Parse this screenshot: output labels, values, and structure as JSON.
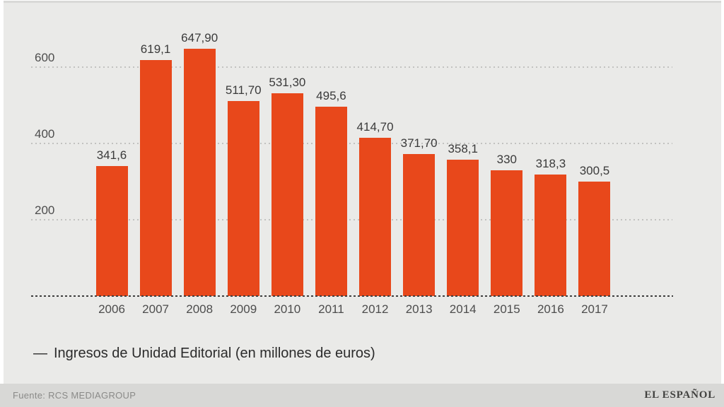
{
  "chart_data": {
    "type": "bar",
    "title": "",
    "legend": "Ingresos de Unidad Editorial (en millones de euros)",
    "legend_marker": "—",
    "legend_position": "bottom-left",
    "categories": [
      "2006",
      "2007",
      "2008",
      "2009",
      "2010",
      "2011",
      "2012",
      "2013",
      "2014",
      "2015",
      "2016",
      "2017"
    ],
    "values": [
      341.6,
      619.1,
      647.9,
      511.7,
      531.3,
      495.6,
      414.7,
      371.7,
      358.1,
      330,
      318.3,
      300.5
    ],
    "value_labels": [
      "341,6",
      "619,1",
      "647,90",
      "511,70",
      "531,30",
      "495,6",
      "414,70",
      "371,70",
      "358,1",
      "330",
      "318,3",
      "300,5"
    ],
    "xlabel": "",
    "ylabel": "",
    "y_ticks": [
      600,
      400,
      200
    ],
    "ylim": [
      0,
      700
    ],
    "grid": true
  },
  "footer": {
    "source": "Fuente: RCS MEDIAGROUP",
    "brand": "EL ESPAÑOL"
  },
  "colors": {
    "bar": "#e8481b",
    "background": "#eaeae8",
    "page_background": "#ffffff",
    "top_border": "#d9d9d7",
    "footer_band": "#d8d8d6",
    "gridline": "#c2c2c0",
    "baseline": "#3e3e3e",
    "axis_text": "#4d4d4d",
    "value_text": "#3a3a3a",
    "legend_text": "#2b2b2b",
    "source_text": "#8a8a88",
    "brand_text": "#41413f"
  }
}
